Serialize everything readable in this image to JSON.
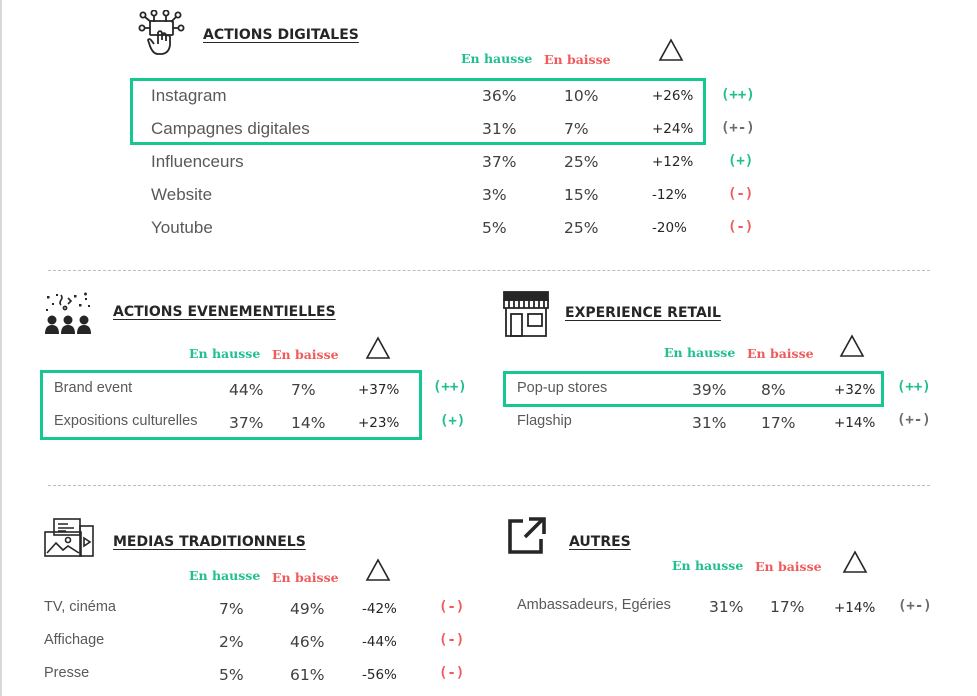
{
  "labels": {
    "up": "En hausse",
    "down": "En baisse"
  },
  "colors": {
    "accent": "#17c792",
    "up": "#1fbf8f",
    "down": "#f05a5a",
    "neutral": "#6b6b6b"
  },
  "digital": {
    "title": "ACTIONS DIGITALES",
    "icon": "touch-network-icon",
    "rows": [
      {
        "name": "Instagram",
        "up": "36%",
        "down": "10%",
        "delta": "+26%",
        "trend": "(++)"
      },
      {
        "name": "Campagnes digitales",
        "up": "31%",
        "down": "7%",
        "delta": "+24%",
        "trend": "(+-)"
      },
      {
        "name": "Influenceurs",
        "up": "37%",
        "down": "25%",
        "delta": "+12%",
        "trend": "(+)"
      },
      {
        "name": "Website",
        "up": "3%",
        "down": "15%",
        "delta": "-12%",
        "trend": "(-)"
      },
      {
        "name": "Youtube",
        "up": "5%",
        "down": "25%",
        "delta": "-20%",
        "trend": "(-)"
      }
    ]
  },
  "events": {
    "title": "ACTIONS EVENEMENTIELLES",
    "icon": "audience-party-icon",
    "rows": [
      {
        "name": "Brand event",
        "up": "44%",
        "down": "7%",
        "delta": "+37%",
        "trend": "(++)"
      },
      {
        "name": "Expositions culturelles",
        "up": "37%",
        "down": "14%",
        "delta": "+23%",
        "trend": "(+)"
      }
    ]
  },
  "retail": {
    "title": "EXPERIENCE RETAIL",
    "icon": "storefront-icon",
    "rows": [
      {
        "name": "Pop-up stores",
        "up": "39%",
        "down": "8%",
        "delta": "+32%",
        "trend": "(++)"
      },
      {
        "name": "Flagship",
        "up": "31%",
        "down": "17%",
        "delta": "+14%",
        "trend": "(+-)"
      }
    ]
  },
  "media": {
    "title": "MEDIAS TRADITIONNELS",
    "icon": "media-screens-icon",
    "rows": [
      {
        "name": "TV, cinéma",
        "up": "7%",
        "down": "49%",
        "delta": "-42%",
        "trend": "(-)"
      },
      {
        "name": "Affichage",
        "up": "2%",
        "down": "46%",
        "delta": "-44%",
        "trend": "(-)"
      },
      {
        "name": "Presse",
        "up": "5%",
        "down": "61%",
        "delta": "-56%",
        "trend": "(-)"
      }
    ]
  },
  "others": {
    "title": "AUTRES",
    "icon": "external-link-icon",
    "rows": [
      {
        "name": "Ambassadeurs, Egéries",
        "up": "31%",
        "down": "17%",
        "delta": "+14%",
        "trend": "(+-)"
      }
    ]
  }
}
